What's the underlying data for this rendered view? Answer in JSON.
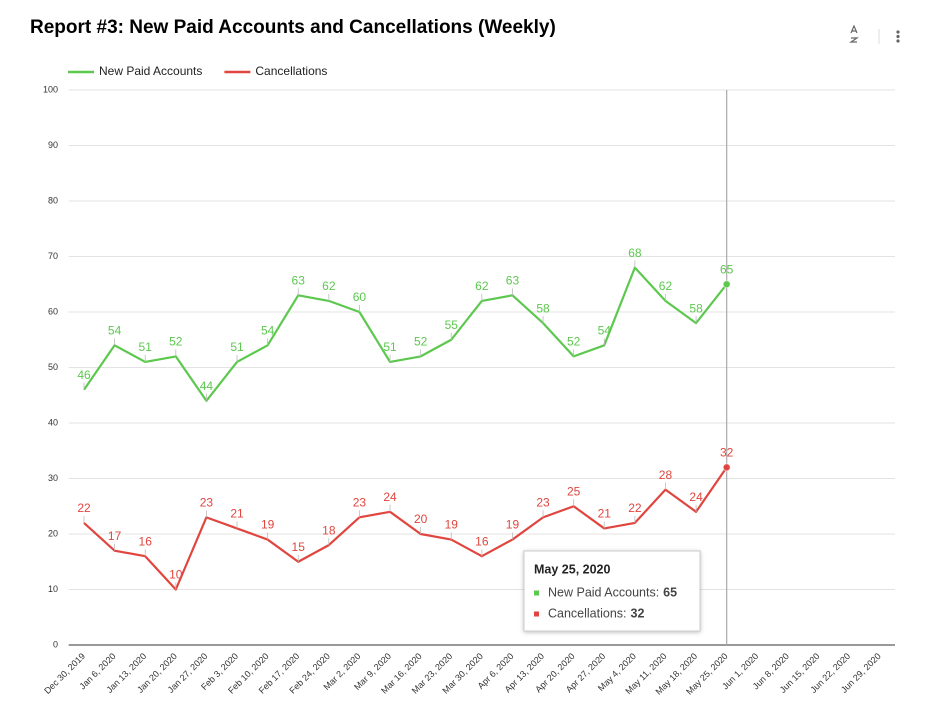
{
  "chart_data": {
    "type": "line",
    "title": "Report #3: New Paid Accounts and Cancellations (Weekly)",
    "categories": [
      "Dec 30, 2019",
      "Jan 6, 2020",
      "Jan 13, 2020",
      "Jan 20, 2020",
      "Jan 27, 2020",
      "Feb 3, 2020",
      "Feb 10, 2020",
      "Feb 17, 2020",
      "Feb 24, 2020",
      "Mar 2, 2020",
      "Mar 9, 2020",
      "Mar 16, 2020",
      "Mar 23, 2020",
      "Mar 30, 2020",
      "Apr 6, 2020",
      "Apr 13, 2020",
      "Apr 20, 2020",
      "Apr 27, 2020",
      "May 4, 2020",
      "May 11, 2020",
      "May 18, 2020",
      "May 25, 2020",
      "Jun 1, 2020",
      "Jun 8, 2020",
      "Jun 15, 2020",
      "Jun 22, 2020",
      "Jun 29, 2020"
    ],
    "series": [
      {
        "name": "New Paid Accounts",
        "color": "#5cc84e",
        "values": [
          46,
          54,
          51,
          52,
          44,
          51,
          54,
          63,
          62,
          60,
          51,
          52,
          55,
          62,
          63,
          58,
          52,
          54,
          68,
          62,
          58,
          65,
          null,
          null,
          null,
          null,
          null
        ]
      },
      {
        "name": "Cancellations",
        "color": "#e0463f",
        "values": [
          22,
          17,
          16,
          10,
          23,
          21,
          19,
          15,
          18,
          23,
          24,
          20,
          19,
          16,
          19,
          23,
          25,
          21,
          22,
          28,
          24,
          32,
          null,
          null,
          null,
          null,
          null
        ]
      }
    ],
    "ylim": [
      0,
      100
    ],
    "yticks": [
      0,
      10,
      20,
      30,
      40,
      50,
      60,
      70,
      80,
      90,
      100
    ],
    "grid": true,
    "legend": "top",
    "tooltip": {
      "title": "May 25, 2020",
      "items": [
        {
          "label": "New Paid Accounts:",
          "value": 65
        },
        {
          "label": "Cancellations:",
          "value": 32
        }
      ]
    }
  }
}
